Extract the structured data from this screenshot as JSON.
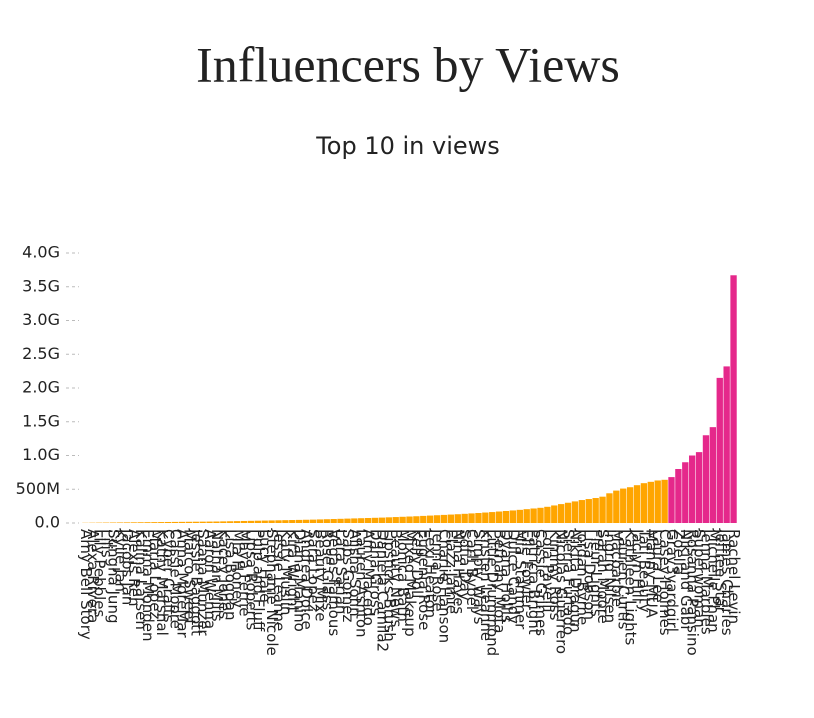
{
  "chart_data": {
    "type": "bar",
    "title": "Influencers by Views",
    "subtitle": "Top 10 in views",
    "categories": [
      "Amy Bell Story",
      "Alexa Rivera",
      "Lily Pebbles",
      "Lilis",
      "Sungha Jung",
      "Kylie Jan",
      "Jacobs Jan",
      "Alexis Ren",
      "Kalina Larsen",
      "Emma Monden",
      "Maria Lopez",
      "Kathy Marshal",
      "Cyber Crafts",
      "Cassie Moore",
      "Anna MoreMar",
      "Marco Sweet",
      "Jessie Baggott",
      "Saana Munzer",
      "Aaron Wenna",
      "Nathan Mills",
      "Kacey Jones",
      "Lisa Bogdan",
      "Mia Honey",
      "Maya Ferrie",
      "Lipsa Roberts",
      "Pulp and Fluff",
      "Lucy Hale",
      "Stephanie Nicole",
      "Jessie Leanne",
      "Katy Muslin",
      "Kira Wright",
      "Diana Manino",
      "Andrea Dolce",
      "Sara Lopez",
      "Beauty Mixe",
      "Rose Glass",
      "Vegas Famous",
      "Lara Sarian",
      "Sabs Gomez",
      "Alisha Sohn",
      "Lauren Ashton",
      "Amy Macedo",
      "Dana Gross",
      "Daniela Camila2",
      "Lipsticks Brush",
      "Beauty News",
      "Monica Bath",
      "Mixed Makeup",
      "Kelly Doll",
      "Eugenia Rose",
      "Lexi Heaton",
      "Jenna Rose",
      "Charlie Hanson",
      "Elazz Jamie",
      "Nina Hayes",
      "Sofia Day",
      "Carli Bybel",
      "Simply Ways",
      "Kristen Leanne",
      "Little Drummond",
      "Bethany Mota",
      "Dyana Hollis",
      "Dulce Candy",
      "Mia Stammer",
      "Elle Fowler",
      "Patricia Bright",
      "Cassie Grimes",
      "Lola Pavelli",
      "Kimmy Ross",
      "Nicolas Guerrero",
      "Sierra Furtado",
      "Nikita Dragun",
      "Jordan Byrne",
      "Lisa Dobson",
      "Fleur Lights",
      "Sarah Moore",
      "Ingrid Nilsen",
      "Macbarbie",
      "Lauren Curtis",
      "Kathleen Lights",
      "Jaclyn Hill",
      "Tati Beauty",
      "Manny MUA",
      "Laura Lee",
      "Casey Holmes",
      "Grav3yardgirl",
      "Zoella",
      "Niki and Gabi",
      "Rosanna Pansino",
      "Superwoman",
      "Jenna Marbles",
      "Michelle Phan",
      "Jeffree Star",
      "James Charles",
      "Rachel Levin"
    ],
    "values": [
      3000000,
      4000000,
      5000000,
      6000000,
      7000000,
      8000000,
      9000000,
      10000000,
      11000000,
      12000000,
      13000000,
      14000000,
      15000000,
      16000000,
      17000000,
      18000000,
      19000000,
      20000000,
      21000000,
      22000000,
      24000000,
      26000000,
      28000000,
      30000000,
      32000000,
      34000000,
      36000000,
      38000000,
      40000000,
      42000000,
      44000000,
      46000000,
      48000000,
      50000000,
      53000000,
      56000000,
      59000000,
      62000000,
      65000000,
      68000000,
      71000000,
      74000000,
      77000000,
      80000000,
      84000000,
      88000000,
      92000000,
      96000000,
      100000000,
      105000000,
      110000000,
      115000000,
      120000000,
      125000000,
      130000000,
      136000000,
      142000000,
      148000000,
      155000000,
      162000000,
      170000000,
      178000000,
      186000000,
      195000000,
      205000000,
      215000000,
      225000000,
      240000000,
      260000000,
      280000000,
      300000000,
      320000000,
      340000000,
      355000000,
      370000000,
      390000000,
      440000000,
      480000000,
      510000000,
      530000000,
      560000000,
      590000000,
      610000000,
      630000000,
      640000000,
      680000000,
      800000000,
      900000000,
      1000000000,
      1050000000,
      1300000000,
      1420000000,
      2150000000,
      2320000000,
      3670000000
    ],
    "color": "#ffa500",
    "highlight_color": "#e5288b",
    "highlight_count": 10,
    "ylim": [
      0,
      4000000000
    ],
    "yticks": [
      {
        "value": 0,
        "label": "0.0"
      },
      {
        "value": 500000000,
        "label": "500M"
      },
      {
        "value": 1000000000,
        "label": "1.0G"
      },
      {
        "value": 1500000000,
        "label": "1.5G"
      },
      {
        "value": 2000000000,
        "label": "2.0G"
      },
      {
        "value": 2500000000,
        "label": "2.5G"
      },
      {
        "value": 3000000000,
        "label": "3.0G"
      },
      {
        "value": 3500000000,
        "label": "3.5G"
      },
      {
        "value": 4000000000,
        "label": "4.0G"
      }
    ]
  }
}
